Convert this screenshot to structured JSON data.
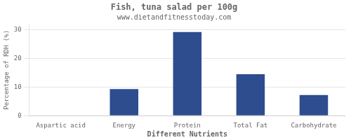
{
  "chart_data": {
    "type": "bar",
    "title": "Fish, tuna salad per 100g",
    "subtitle": "www.dietandfitnesstoday.com",
    "xlabel": "Different Nutrients",
    "ylabel": "Percentage of RDH (%)",
    "categories": [
      "Aspartic acid",
      "Energy",
      "Protein",
      "Total Fat",
      "Carbohydrate"
    ],
    "values": [
      0,
      9.3,
      29.2,
      14.5,
      7.2
    ],
    "color": "#2d4d8e",
    "ylim": [
      0,
      32
    ],
    "yticks": [
      0,
      10,
      20,
      30
    ],
    "grid": true
  }
}
